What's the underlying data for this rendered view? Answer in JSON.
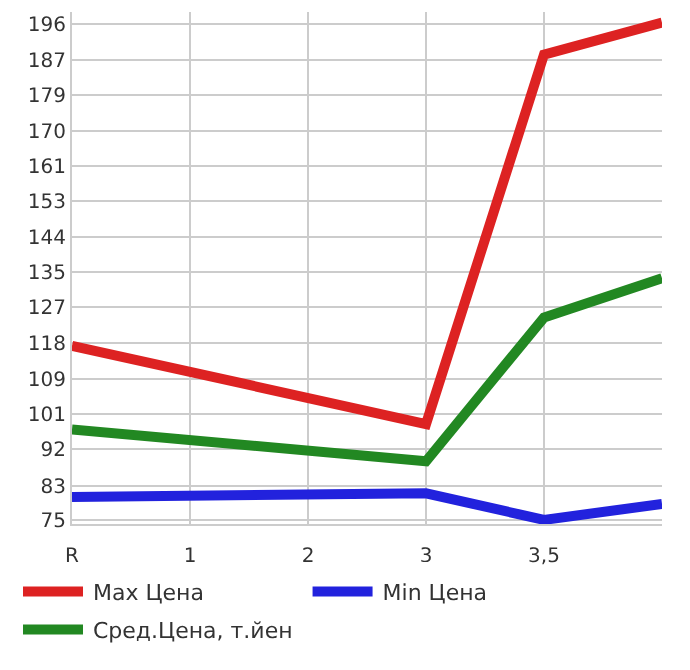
{
  "chart_data": {
    "type": "line",
    "categories": [
      "R",
      "1",
      "2",
      "3",
      "3,5",
      null
    ],
    "series": [
      {
        "name": "Max Цена",
        "color": "#dd2222",
        "values": [
          117.5,
          null,
          null,
          98.4,
          188.6,
          196.4
        ]
      },
      {
        "name": "Min Цена",
        "color": "#2222dd",
        "values": [
          80.6,
          null,
          null,
          81.5,
          75,
          78.9
        ]
      },
      {
        "name": "Сред.Цена, т.йен",
        "color": "#228822",
        "values": [
          97.1,
          null,
          null,
          89.3,
          124.4,
          134
        ]
      }
    ],
    "ylim": [
      74,
      199
    ],
    "yticks": [
      75,
      {
        "value": 83.4,
        "label": "83"
      },
      {
        "value": 92.29,
        "label": "92"
      },
      {
        "value": 100.93,
        "label": "101"
      },
      {
        "value": 109.4,
        "label": "109"
      },
      {
        "value": 118.21,
        "label": "118"
      },
      {
        "value": 126.86,
        "label": "127"
      },
      {
        "value": 135.5,
        "label": "135"
      },
      {
        "value": 144.14,
        "label": "144"
      },
      {
        "value": 152.79,
        "label": "153"
      },
      {
        "value": 161.43,
        "label": "161"
      },
      {
        "value": 170.07,
        "label": "170"
      },
      {
        "value": 178.71,
        "label": "179"
      },
      {
        "value": 187.36,
        "label": "187"
      },
      {
        "value": 196,
        "label": "196"
      }
    ],
    "grid": true,
    "legend": "bottom",
    "marker": "none",
    "line_style": "solid"
  }
}
